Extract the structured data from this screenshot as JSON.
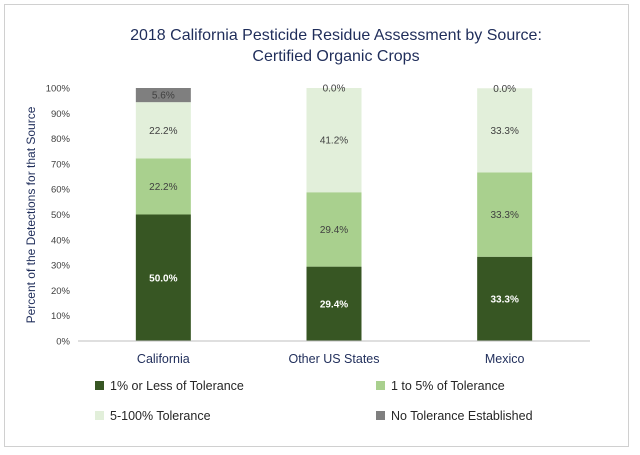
{
  "chart_data": {
    "type": "bar",
    "stacked": true,
    "title": "2018 California Pesticide Residue Assessment by Source:",
    "subtitle": "Certified Organic Crops",
    "ylabel": "Percent of the Detections for that Source",
    "xlabel": "",
    "ylim": [
      0,
      100
    ],
    "ytick_values": [
      0,
      10,
      20,
      30,
      40,
      50,
      60,
      70,
      80,
      90,
      100
    ],
    "ytick_labels": [
      "0%",
      "10%",
      "20%",
      "30%",
      "40%",
      "50%",
      "60%",
      "70%",
      "80%",
      "90%",
      "100%"
    ],
    "categories": [
      "California",
      "Other US States",
      "Mexico"
    ],
    "series": [
      {
        "name": "1% or Less of Tolerance",
        "color": "#375623",
        "label_dark": true,
        "values": [
          50.0,
          29.4,
          33.3
        ],
        "labels": [
          "50.0%",
          "29.4%",
          "33.3%"
        ]
      },
      {
        "name": "1 to 5% of Tolerance",
        "color": "#a9d08e",
        "label_dark": false,
        "values": [
          22.2,
          29.4,
          33.3
        ],
        "labels": [
          "22.2%",
          "29.4%",
          "33.3%"
        ]
      },
      {
        "name": "5-100% Tolerance",
        "color": "#e2efda",
        "label_dark": false,
        "values": [
          22.2,
          41.2,
          33.3
        ],
        "labels": [
          "22.2%",
          "41.2%",
          "33.3%"
        ]
      },
      {
        "name": "No Tolerance Established",
        "color": "#7f7f7f",
        "label_dark": false,
        "values": [
          5.6,
          0.0,
          0.0
        ],
        "labels": [
          "5.6%",
          "0.0%",
          "0.0%"
        ]
      }
    ],
    "legend_position": "bottom",
    "grid": false
  }
}
